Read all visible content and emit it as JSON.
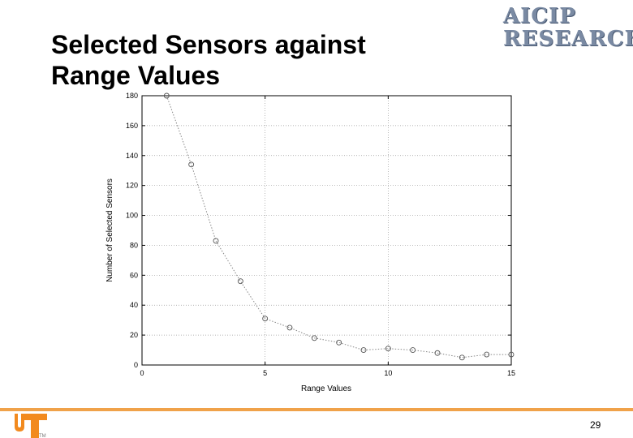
{
  "slide": {
    "title_line1": "Selected Sensors against",
    "title_line2": "Range Values",
    "page_number": "29"
  },
  "logo": {
    "line1": "AICIP",
    "line2": "RESEARCH"
  },
  "colors": {
    "footer_accent": "#f0a24a",
    "logo_orange": "#f28a1e",
    "marker": "#555555",
    "grid": "#999999"
  },
  "chart_data": {
    "type": "line",
    "xlabel": "Range Values",
    "ylabel": "Number of Selected Sensors",
    "xlim": [
      0,
      15
    ],
    "ylim": [
      0,
      180
    ],
    "xticks": [
      0,
      5,
      10,
      15
    ],
    "yticks": [
      0,
      20,
      40,
      60,
      80,
      100,
      120,
      140,
      160,
      180
    ],
    "grid": true,
    "x": [
      1,
      2,
      3,
      4,
      5,
      6,
      7,
      8,
      9,
      10,
      11,
      12,
      13,
      14,
      15
    ],
    "values": [
      180,
      134,
      83,
      56,
      31,
      25,
      18,
      15,
      10,
      11,
      10,
      8,
      5,
      7,
      7
    ],
    "marker": "circle",
    "line_style": "dotted"
  }
}
